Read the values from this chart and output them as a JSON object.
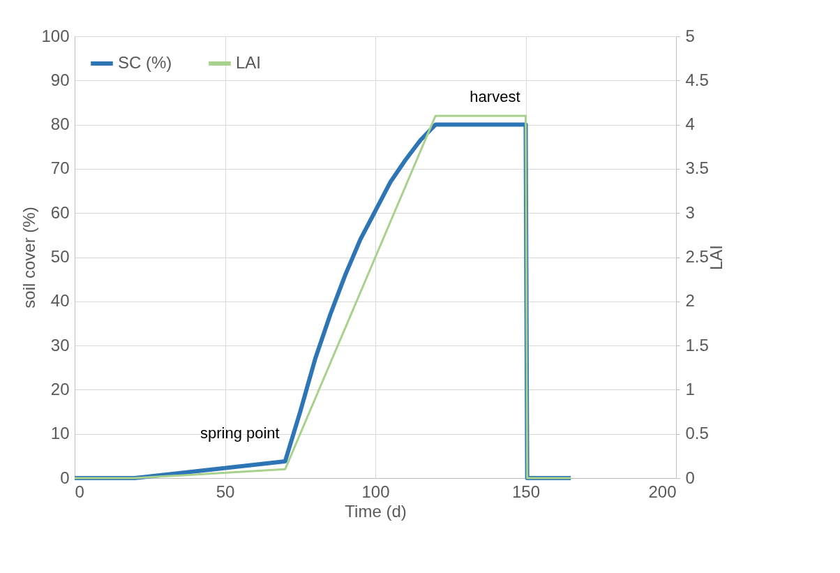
{
  "chart_data": {
    "type": "line",
    "xlabel": "Time (d)",
    "ylabel": "soil cover (%)",
    "y2label": "LAI",
    "xlim": [
      0,
      200
    ],
    "xticks": [
      0,
      50,
      100,
      150,
      200
    ],
    "ylim": [
      0,
      100
    ],
    "yticks": [
      0,
      10,
      20,
      30,
      40,
      50,
      60,
      70,
      80,
      90,
      100
    ],
    "y2lim": [
      0,
      5
    ],
    "y2ticks": [
      0,
      0.5,
      1,
      1.5,
      2,
      2.5,
      3,
      3.5,
      4,
      4.5,
      5
    ],
    "grid": true,
    "legend": "top left",
    "series": [
      {
        "name": "SC (%)",
        "color": "#2e75b6",
        "x": [
          0,
          20,
          70,
          75,
          80,
          85,
          90,
          95,
          100,
          105,
          110,
          115,
          120,
          150,
          150.5,
          165
        ],
        "values": [
          0,
          0,
          3.8,
          15,
          27,
          37,
          46,
          54,
          60.5,
          67,
          72,
          76.5,
          80,
          80,
          0,
          0
        ]
      },
      {
        "name": "LAI",
        "color": "#a9d18e",
        "axis": "y2",
        "x": [
          0,
          20,
          70,
          120,
          150,
          150.5,
          165
        ],
        "values": [
          0,
          0,
          0.1,
          4.1,
          4.1,
          0,
          0
        ]
      }
    ],
    "annotations": [
      {
        "text": "spring point",
        "x": 70,
        "y": 3.8
      },
      {
        "text": "harvest",
        "x": 150,
        "y": 80
      }
    ]
  }
}
